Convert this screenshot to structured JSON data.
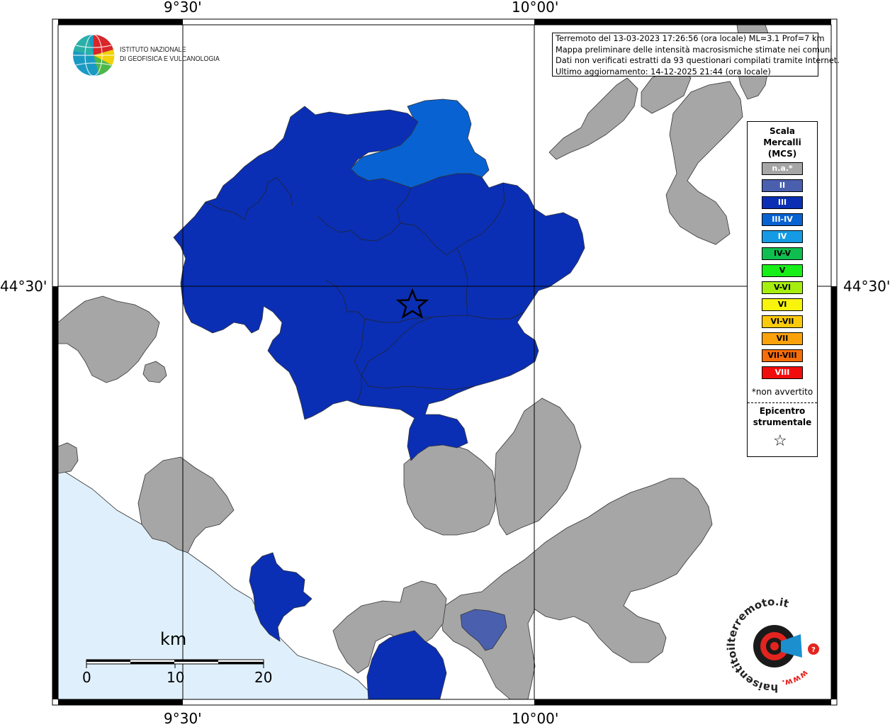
{
  "axes": {
    "lon_labels": [
      "9°30'",
      "10°00'"
    ],
    "lat_labels": [
      "44°30'"
    ]
  },
  "institute": {
    "line1": "ISTITUTO NAZIONALE",
    "line2": "DI GEOFISICA E VULCANOLOGIA"
  },
  "info": {
    "lines": [
      "Terremoto del 13-03-2023 17:26:56 (ora locale) ML=3.1 Prof=7 km",
      "Mappa preliminare delle intensità macrosismiche stimate nei comuni",
      "Dati non verificati estratti da 93 questionari compilati tramite Internet.",
      "Ultimo aggiornamento: 14-12-2025 21:44 (ora locale)"
    ]
  },
  "legend": {
    "title": [
      "Scala",
      "Mercalli",
      "(MCS)"
    ],
    "items": [
      {
        "label": "n.a.*",
        "color": "#a6a6a6",
        "text": "#ffffff"
      },
      {
        "label": "II",
        "color": "#4a5fae",
        "text": "#ffffff"
      },
      {
        "label": "III",
        "color": "#0a2fb4",
        "text": "#ffffff"
      },
      {
        "label": "III-IV",
        "color": "#0862d2",
        "text": "#ffffff"
      },
      {
        "label": "IV",
        "color": "#159be6",
        "text": "#ffffff"
      },
      {
        "label": "IV-V",
        "color": "#0fbe4e",
        "text": "#000000"
      },
      {
        "label": "V",
        "color": "#18ee18",
        "text": "#000000"
      },
      {
        "label": "V-VI",
        "color": "#a6ee0f",
        "text": "#000000"
      },
      {
        "label": "VI",
        "color": "#f8f40c",
        "text": "#000000"
      },
      {
        "label": "VI-VII",
        "color": "#fbcb0b",
        "text": "#000000"
      },
      {
        "label": "VII",
        "color": "#fba20b",
        "text": "#000000"
      },
      {
        "label": "VII-VIII",
        "color": "#f66d0a",
        "text": "#000000"
      },
      {
        "label": "VIII",
        "color": "#f20d0d",
        "text": "#ffffff"
      }
    ],
    "note": "*non avvertito",
    "epicenter": [
      "Epicentro",
      "strumentale"
    ]
  },
  "scale_bar": {
    "unit": "km",
    "ticks": [
      "0",
      "10",
      "20"
    ]
  },
  "logo_haisentito": {
    "text": "haisentitoilterremoto.it",
    "www": "www."
  },
  "colors": {
    "intensity_III": "#0a2fb4",
    "intensity_III_IV": "#0862d2",
    "intensity_II": "#4a5fae",
    "not_available": "#a6a6a6",
    "sea": "#dff0fc"
  }
}
